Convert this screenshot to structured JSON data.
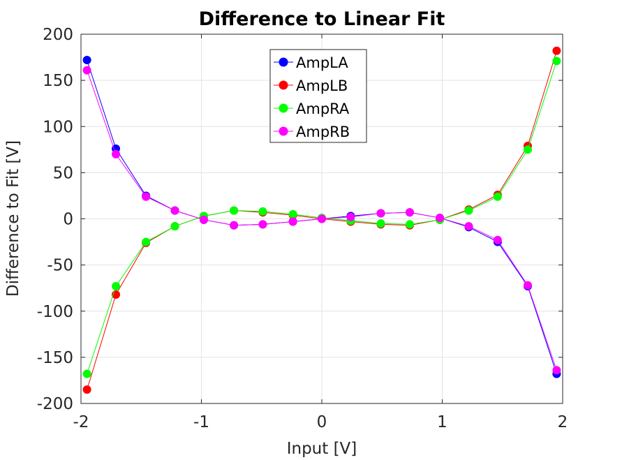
{
  "chart_data": {
    "type": "line",
    "title": "Difference to Linear Fit",
    "xlabel": "Input [V]",
    "ylabel": "Difference to Fit [V]",
    "xlim": [
      -2,
      2
    ],
    "ylim": [
      -200,
      200
    ],
    "xticks": [
      -2,
      -1,
      0,
      1,
      2
    ],
    "yticks": [
      -200,
      -150,
      -100,
      -50,
      0,
      50,
      100,
      150,
      200
    ],
    "xtick_labels": [
      "-2",
      "-1",
      "0",
      "1",
      "2"
    ],
    "ytick_labels": [
      "-200",
      "-150",
      "-100",
      "-50",
      "0",
      "50",
      "100",
      "150",
      "200"
    ],
    "grid": true,
    "legend_position": "top-center",
    "x": [
      -1.95,
      -1.71,
      -1.46,
      -1.22,
      -0.98,
      -0.73,
      -0.49,
      -0.24,
      0.0,
      0.24,
      0.49,
      0.73,
      0.98,
      1.22,
      1.46,
      1.71,
      1.95
    ],
    "series": [
      {
        "name": "AmpLA",
        "color": "#0000ff",
        "values": [
          172,
          76,
          25,
          9,
          -1,
          -7,
          -6,
          -3,
          0,
          3,
          6,
          7,
          1,
          -9,
          -25,
          -73,
          -168
        ]
      },
      {
        "name": "AmpLB",
        "color": "#ff0000",
        "values": [
          -185,
          -82,
          -26,
          -8,
          3,
          9,
          7,
          4,
          0,
          -3,
          -6,
          -7,
          -1,
          10,
          26,
          79,
          182
        ]
      },
      {
        "name": "AmpRA",
        "color": "#00ff00",
        "values": [
          -168,
          -73,
          -25,
          -8,
          3,
          9,
          8,
          5,
          1,
          -2,
          -5,
          -6,
          -1,
          9,
          24,
          75,
          171
        ]
      },
      {
        "name": "AmpRB",
        "color": "#ff00ff",
        "values": [
          161,
          70,
          24,
          9,
          -1,
          -7,
          -6,
          -3,
          0,
          2,
          6,
          7,
          1,
          -8,
          -23,
          -72,
          -164
        ]
      }
    ]
  }
}
